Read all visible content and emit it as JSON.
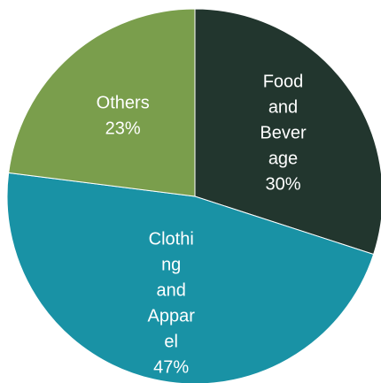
{
  "chart_data": {
    "type": "pie",
    "slices": [
      {
        "category": "Food and Beverage",
        "value": 30,
        "percent_label": "30%",
        "label_lines": [
          "Food",
          "and",
          "Bever",
          "age"
        ],
        "color": "#22362e"
      },
      {
        "category": "Clothing and Apparel",
        "value": 47,
        "percent_label": "47%",
        "label_lines": [
          "Clothi",
          "ng",
          "and",
          "Appar",
          "el"
        ],
        "color": "#1992a5"
      },
      {
        "category": "Others",
        "value": 23,
        "percent_label": "23%",
        "label_lines": [
          "Others"
        ],
        "color": "#7a9e4c"
      }
    ]
  }
}
